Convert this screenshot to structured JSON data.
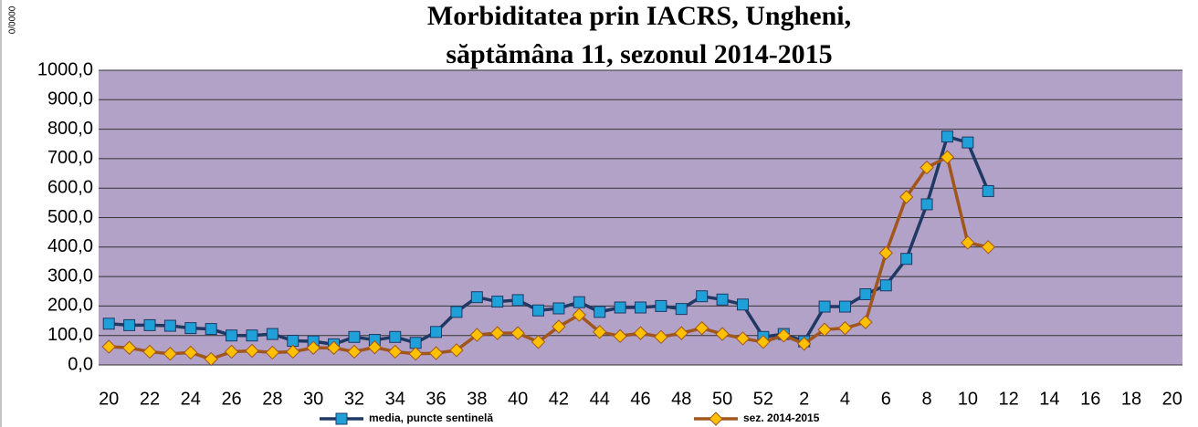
{
  "chart_data": {
    "type": "line",
    "title": [
      "Morbiditatea prin IACRS, Ungheni,",
      "săptămâna 11, sezonul  2014-2015"
    ],
    "y_label": "0/0000",
    "categories": [
      "20",
      null,
      "22",
      null,
      "24",
      null,
      "26",
      null,
      "28",
      null,
      "30",
      null,
      "32",
      null,
      "34",
      null,
      "36",
      null,
      "38",
      null,
      "40",
      null,
      "42",
      null,
      "44",
      null,
      "46",
      null,
      "48",
      null,
      "50",
      null,
      "52",
      null,
      "2",
      null,
      "4",
      null,
      "6",
      null,
      "8",
      null,
      "10",
      null,
      "12",
      null,
      "14",
      null,
      "16",
      null,
      "18",
      null,
      "20"
    ],
    "series": [
      {
        "name": "media, puncte sentinelă",
        "color": "#1f3864",
        "marker_color": "#1fa0d8",
        "values": [
          140,
          135,
          135,
          133,
          125,
          122,
          100,
          100,
          105,
          82,
          80,
          70,
          95,
          85,
          95,
          75,
          112,
          180,
          230,
          215,
          220,
          185,
          192,
          213,
          180,
          195,
          195,
          200,
          190,
          233,
          222,
          205,
          95,
          105,
          80,
          198,
          198,
          240,
          270,
          360,
          545,
          775,
          755,
          590,
          null,
          null,
          null,
          null,
          null,
          null,
          null,
          null,
          null
        ]
      },
      {
        "name": "sez. 2014-2015",
        "color": "#a0561c",
        "marker_color": "#ffc000",
        "values": [
          62,
          58,
          45,
          38,
          42,
          20,
          45,
          48,
          42,
          45,
          58,
          58,
          45,
          60,
          45,
          38,
          40,
          50,
          102,
          108,
          108,
          78,
          130,
          170,
          112,
          98,
          108,
          95,
          108,
          125,
          105,
          90,
          78,
          100,
          72,
          120,
          125,
          145,
          380,
          570,
          670,
          705,
          415,
          400,
          null,
          null,
          null,
          null,
          null,
          null,
          null,
          null,
          null
        ]
      }
    ],
    "ylim": [
      0,
      1000
    ],
    "yticks": [
      {
        "value": 0,
        "label": "0,0"
      },
      {
        "value": 100,
        "label": "100,0"
      },
      {
        "value": 200,
        "label": "200,0"
      },
      {
        "value": 300,
        "label": "300,0"
      },
      {
        "value": 400,
        "label": "400,0"
      },
      {
        "value": 500,
        "label": "500,0"
      },
      {
        "value": 600,
        "label": "600,0"
      },
      {
        "value": 700,
        "label": "700,0"
      },
      {
        "value": 800,
        "label": "800,0"
      },
      {
        "value": 900,
        "label": "900,0"
      },
      {
        "value": 1000,
        "label": "1000,0"
      }
    ],
    "grid": true,
    "plot_background": "#b3a2c7",
    "legend": "bottom"
  }
}
